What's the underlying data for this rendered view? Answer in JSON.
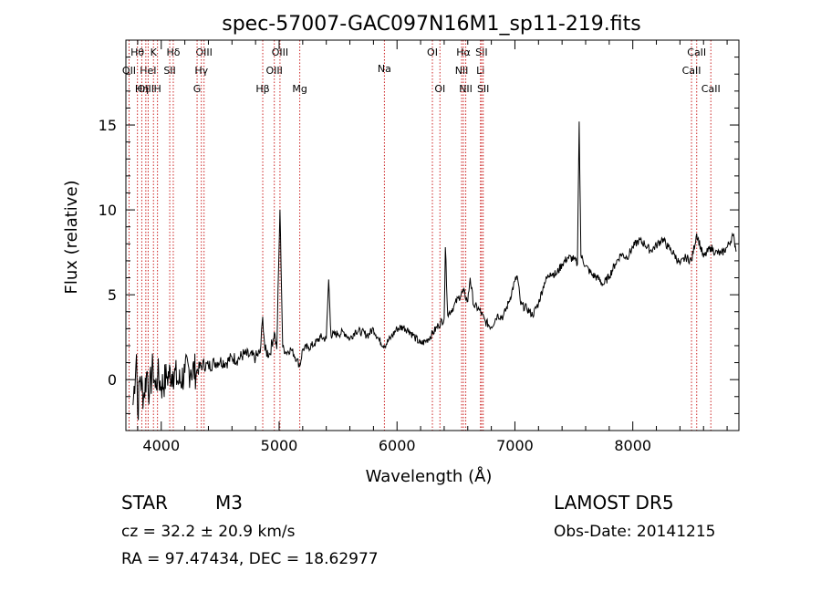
{
  "chart_data": {
    "type": "line",
    "title": "spec-57007-GAC097N16M1_sp11-219.fits",
    "xlabel": "Wavelength (Å)",
    "ylabel": "Flux (relative)",
    "xlim": [
      3700,
      8900
    ],
    "ylim": [
      -3,
      20
    ],
    "xticks": [
      4000,
      5000,
      6000,
      7000,
      8000
    ],
    "xtick_labels": [
      "4000",
      "5000",
      "6000",
      "7000",
      "8000"
    ],
    "yticks": [
      0,
      5,
      10,
      15
    ],
    "ytick_labels": [
      "0",
      "5",
      "10",
      "15"
    ],
    "grid": false,
    "spectrum": {
      "x": [
        3760,
        3790,
        3800,
        3820,
        3850,
        3880,
        3900,
        3930,
        3950,
        3970,
        4000,
        4050,
        4100,
        4150,
        4200,
        4250,
        4300,
        4350,
        4400,
        4450,
        4500,
        4550,
        4600,
        4650,
        4700,
        4750,
        4800,
        4840,
        4861,
        4880,
        4920,
        4959,
        4980,
        5007,
        5030,
        5060,
        5100,
        5150,
        5175,
        5200,
        5250,
        5300,
        5350,
        5400,
        5420,
        5440,
        5500,
        5550,
        5600,
        5650,
        5700,
        5750,
        5800,
        5850,
        5893,
        5950,
        6000,
        6050,
        6100,
        6150,
        6200,
        6250,
        6300,
        6350,
        6400,
        6410,
        6430,
        6480,
        6520,
        6563,
        6600,
        6620,
        6650,
        6700,
        6750,
        6800,
        6850,
        6900,
        6950,
        7000,
        7020,
        7050,
        7100,
        7150,
        7200,
        7250,
        7300,
        7350,
        7400,
        7450,
        7500,
        7530,
        7545,
        7560,
        7600,
        7650,
        7700,
        7750,
        7800,
        7850,
        7900,
        7950,
        8000,
        8050,
        8100,
        8150,
        8200,
        8250,
        8300,
        8350,
        8400,
        8450,
        8498,
        8542,
        8600,
        8662,
        8700,
        8750,
        8800,
        8850,
        8880
      ],
      "y": [
        -1.5,
        1.5,
        -2.0,
        0.2,
        -1.0,
        0.5,
        -0.8,
        0.8,
        -0.5,
        0.3,
        -0.4,
        0.2,
        0.5,
        -0.2,
        0.4,
        0.6,
        0.5,
        0.9,
        0.8,
        1.0,
        1.1,
        1.0,
        1.3,
        1.2,
        1.5,
        1.4,
        1.3,
        1.6,
        3.7,
        1.7,
        1.5,
        2.8,
        1.8,
        10.0,
        1.9,
        1.6,
        1.8,
        1.2,
        0.8,
        1.8,
        1.9,
        2.1,
        2.5,
        2.4,
        5.9,
        2.6,
        2.7,
        2.8,
        2.4,
        2.9,
        2.8,
        2.6,
        3.0,
        2.3,
        2.0,
        2.5,
        3.0,
        3.1,
        2.9,
        2.5,
        2.1,
        2.3,
        2.7,
        3.2,
        3.6,
        7.8,
        3.8,
        4.3,
        4.8,
        5.2,
        4.6,
        6.0,
        4.4,
        4.1,
        3.4,
        3.1,
        3.8,
        3.7,
        4.6,
        5.8,
        6.1,
        4.4,
        4.2,
        3.8,
        4.5,
        5.7,
        6.3,
        6.2,
        6.8,
        7.2,
        7.1,
        6.8,
        15.2,
        7.3,
        6.7,
        6.2,
        6.0,
        5.6,
        6.1,
        6.8,
        7.4,
        7.2,
        7.8,
        8.2,
        8.0,
        7.6,
        7.9,
        8.3,
        7.8,
        7.4,
        6.8,
        7.2,
        7.0,
        8.6,
        7.2,
        7.8,
        7.5,
        7.4,
        7.8,
        8.5,
        7.6
      ]
    },
    "line_marks": [
      {
        "label": "Hθ",
        "row": 0,
        "x": 3798
      },
      {
        "label": "K",
        "row": 0,
        "x": 3934
      },
      {
        "label": "Hδ",
        "row": 0,
        "x": 4102
      },
      {
        "label": "OIII",
        "row": 0,
        "x": 4363
      },
      {
        "label": "OIII",
        "row": 0,
        "x": 5007
      },
      {
        "label": "OI",
        "row": 0,
        "x": 6300
      },
      {
        "label": "Hα",
        "row": 0,
        "x": 6563
      },
      {
        "label": "SII",
        "row": 0,
        "x": 6717
      },
      {
        "label": "CaII",
        "row": 0,
        "x": 8542
      },
      {
        "label": "OII",
        "row": 1,
        "x": 3727
      },
      {
        "label": "HeI",
        "row": 1,
        "x": 3889
      },
      {
        "label": "SII",
        "row": 1,
        "x": 4072
      },
      {
        "label": "Hγ",
        "row": 1,
        "x": 4340
      },
      {
        "label": "OIII",
        "row": 1,
        "x": 4959
      },
      {
        "label": "NII",
        "row": 1,
        "x": 6548
      },
      {
        "label": "Li",
        "row": 1,
        "x": 6708
      },
      {
        "label": "CaII",
        "row": 1,
        "x": 8498
      },
      {
        "label": "OIII",
        "row": 2,
        "x": 3869
      },
      {
        "label": "Hη",
        "row": 2,
        "x": 3835
      },
      {
        "label": "H",
        "row": 2,
        "x": 3968
      },
      {
        "label": "G",
        "row": 2,
        "x": 4304
      },
      {
        "label": "Hβ",
        "row": 2,
        "x": 4861
      },
      {
        "label": "Mg",
        "row": 2,
        "x": 5175
      },
      {
        "label": "Na",
        "row": 0.9,
        "x": 5893
      },
      {
        "label": "OI",
        "row": 2,
        "x": 6364
      },
      {
        "label": "NII",
        "row": 2,
        "x": 6583
      },
      {
        "label": "SII",
        "row": 2,
        "x": 6731
      },
      {
        "label": "CaII",
        "row": 2,
        "x": 8662
      }
    ],
    "line_colors": {
      "spectrum": "#000000",
      "marks": "#cc2222"
    }
  },
  "info": {
    "object_class": "STAR",
    "subclass": "M3",
    "survey": "LAMOST DR5",
    "cz": "cz = 32.2 ± 20.9 km/s",
    "obs_date": "Obs-Date: 20141215",
    "coords": "RA =  97.47434, DEC =  18.62977"
  }
}
